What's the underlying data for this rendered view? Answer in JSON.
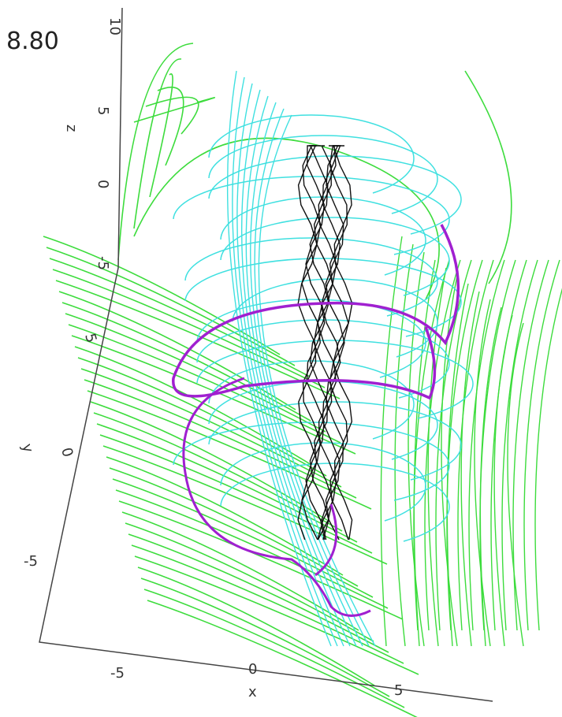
{
  "time_label": "8.80",
  "axes": {
    "z": {
      "name": "z",
      "ticks": [
        "10",
        "5",
        "0",
        "-5"
      ]
    },
    "y": {
      "name": "y",
      "ticks": [
        "5",
        "0",
        "-5"
      ]
    },
    "x": {
      "name": "x",
      "ticks": [
        "-5",
        "0",
        "5"
      ]
    }
  }
}
